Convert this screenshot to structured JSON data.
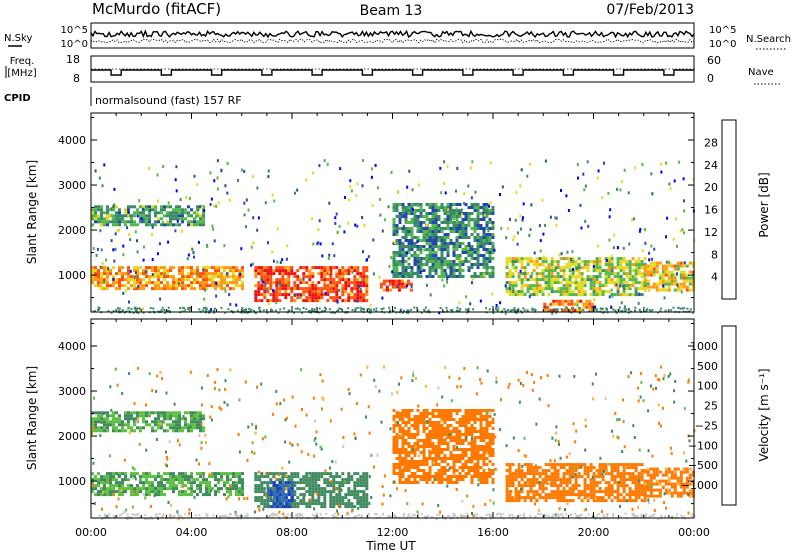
{
  "header": {
    "station": "McMurdo (fitACF)",
    "beam": "Beam 13",
    "date": "07/Feb/2013"
  },
  "strips": {
    "nsky_label": "N.Sky",
    "nsearch_label": "N.Search",
    "noise_tick_top": "10^5",
    "noise_tick_bottom": "10^0",
    "freq_label_line1": "Freq.",
    "freq_label_line2": "[MHz]",
    "freq_ticks": [
      "18",
      "8"
    ],
    "nave_label": "Nave",
    "nave_ticks": [
      "60",
      "0"
    ],
    "cpid_label": "CPID",
    "cpid_text": "normalsound (fast) 157 RF"
  },
  "panels": {
    "power": {
      "ylabel": "Slant Range [km]",
      "colorbar_label": "Power [dB]"
    },
    "velocity": {
      "ylabel": "Slant Range [km]",
      "colorbar_label": "Velocity [m s⁻¹]"
    }
  },
  "chart_data": [
    {
      "type": "heatmap",
      "name": "power",
      "xlabel": "Time UT",
      "ylabel": "Slant Range [km]",
      "xlim": [
        0,
        24
      ],
      "ylim": [
        180,
        4600
      ],
      "x_ticks": [
        "00:00",
        "04:00",
        "08:00",
        "12:00",
        "16:00",
        "20:00",
        "00:00"
      ],
      "y_ticks": [
        1000,
        2000,
        3000,
        4000
      ],
      "colorbar": {
        "label": "Power [dB]",
        "ticks": [
          "4",
          "8",
          "12",
          "16",
          "20",
          "24",
          "28"
        ],
        "colors": [
          "#0000ff",
          "#2448b0",
          "#3a8a6a",
          "#52b84a",
          "#e8d820",
          "#ff9a10",
          "#ff5010",
          "#ee1010"
        ]
      },
      "regions": [
        {
          "t0": 0.0,
          "t1": 4.5,
          "r0": 2100,
          "r1": 2550,
          "value": 12
        },
        {
          "t0": 0.0,
          "t1": 6.0,
          "r0": 700,
          "r1": 1200,
          "value": 22
        },
        {
          "t0": 6.5,
          "t1": 11.0,
          "r0": 450,
          "r1": 1200,
          "value": 27
        },
        {
          "t0": 11.5,
          "t1": 12.8,
          "r0": 650,
          "r1": 900,
          "value": 26
        },
        {
          "t0": 12.0,
          "t1": 16.0,
          "r0": 1000,
          "r1": 2600,
          "value": 10
        },
        {
          "t0": 16.5,
          "t1": 22.0,
          "r0": 550,
          "r1": 1400,
          "value": 16
        },
        {
          "t0": 18.0,
          "t1": 20.0,
          "r0": 250,
          "r1": 450,
          "value": 24
        },
        {
          "t0": 22.0,
          "t1": 24.0,
          "r0": 700,
          "r1": 1300,
          "value": 20
        }
      ]
    },
    {
      "type": "heatmap",
      "name": "velocity",
      "xlabel": "Time UT",
      "ylabel": "Slant Range [km]",
      "xlim": [
        0,
        24
      ],
      "ylim": [
        180,
        4600
      ],
      "x_ticks": [
        "00:00",
        "04:00",
        "08:00",
        "12:00",
        "16:00",
        "20:00",
        "00:00"
      ],
      "y_ticks": [
        1000,
        2000,
        3000,
        4000
      ],
      "colorbar": {
        "label": "Velocity [m s⁻¹]",
        "ticks": [
          "1000",
          "500",
          "100",
          "25",
          "−25",
          "−100",
          "−500",
          "−1000"
        ],
        "colors": [
          "#2040c0",
          "#2f6fb0",
          "#3f8a5f",
          "#5cc040",
          "#c8c8c8",
          "#ffb040",
          "#ff7800",
          "#ff3800",
          "#e81010"
        ]
      },
      "regions": [
        {
          "t0": 0.0,
          "t1": 4.5,
          "r0": 2100,
          "r1": 2550,
          "value": 100
        },
        {
          "t0": 0.0,
          "t1": 6.0,
          "r0": 700,
          "r1": 1200,
          "value": 100
        },
        {
          "t0": 6.5,
          "t1": 11.0,
          "r0": 450,
          "r1": 1200,
          "value": 300
        },
        {
          "t0": 7.0,
          "t1": 8.0,
          "r0": 450,
          "r1": 1000,
          "value": 900
        },
        {
          "t0": 12.0,
          "t1": 16.0,
          "r0": 1000,
          "r1": 2600,
          "value": -200
        },
        {
          "t0": 16.5,
          "t1": 22.0,
          "r0": 550,
          "r1": 1400,
          "value": -300
        },
        {
          "t0": 22.0,
          "t1": 24.0,
          "r0": 700,
          "r1": 1300,
          "value": -150
        }
      ]
    }
  ]
}
